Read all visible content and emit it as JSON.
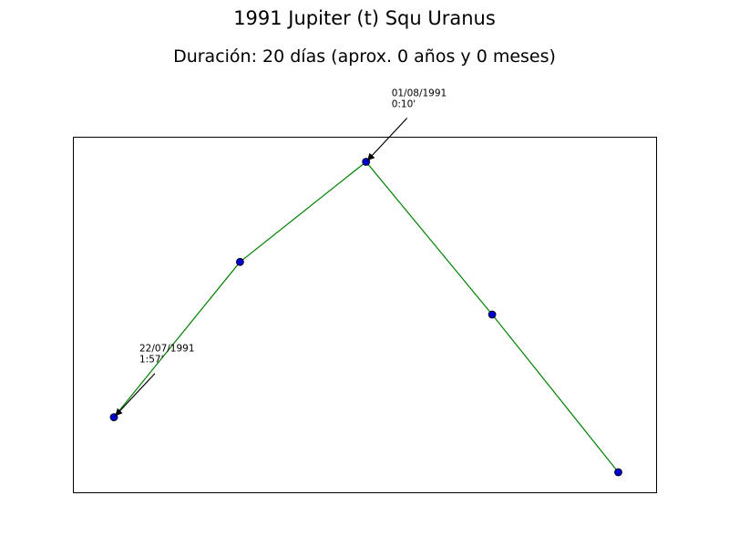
{
  "chart_data": {
    "type": "line",
    "title": "1991 Jupiter (t) Squ Uranus",
    "subtitle": "Duración: 20 días (aprox. 0 años y 0 meses)",
    "x": [
      0,
      1,
      2,
      3,
      4
    ],
    "y": [
      -3.9,
      -0.8,
      1.2,
      -1.85,
      -5.0
    ],
    "xlim": [
      -0.325,
      4.3
    ],
    "ylim": [
      -5.4,
      1.7
    ],
    "line_color": "#008000",
    "marker_color": "#0000cc",
    "grid": false,
    "annotations": [
      {
        "point_index": 0,
        "lines": [
          "22/07/1991",
          "1:57'"
        ]
      },
      {
        "point_index": 2,
        "lines": [
          "01/08/1991",
          "0:10'"
        ]
      }
    ]
  }
}
